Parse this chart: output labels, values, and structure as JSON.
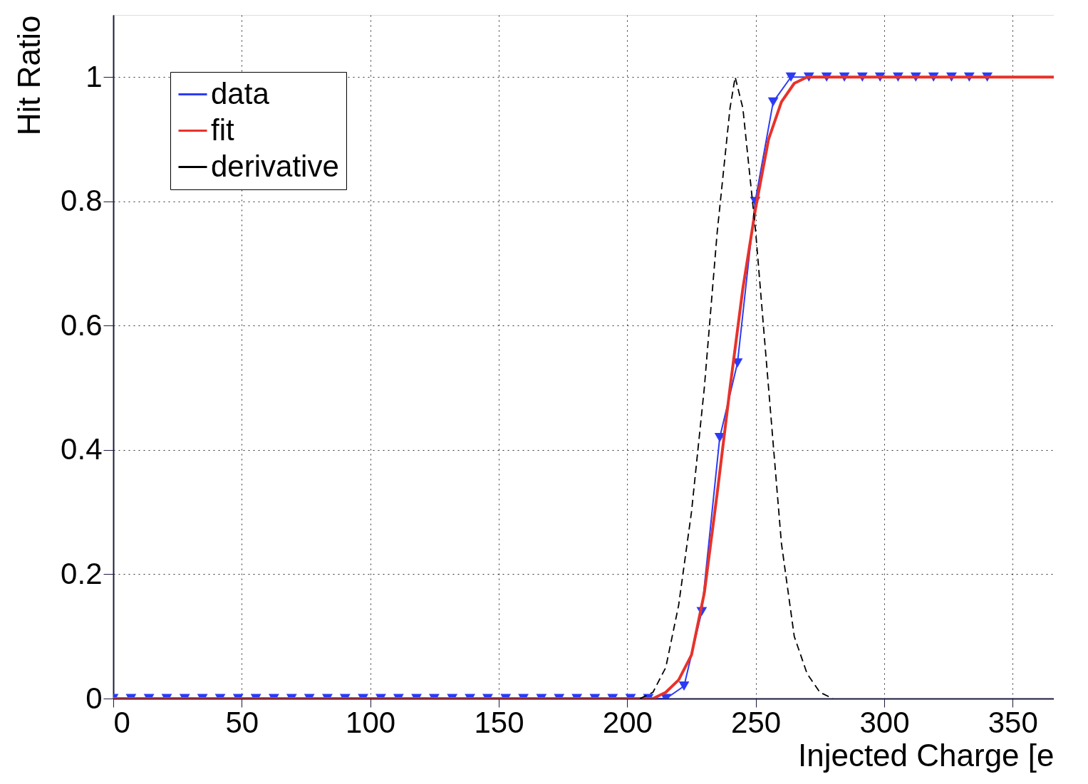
{
  "chart_data": {
    "type": "line",
    "xlabel": "Injected Charge [e",
    "ylabel": "Hit Ratio",
    "xlim": [
      0,
      366
    ],
    "ylim": [
      0,
      1.1
    ],
    "xticks": [
      0,
      50,
      100,
      150,
      200,
      250,
      300,
      350
    ],
    "yticks": [
      0,
      0.2,
      0.4,
      0.6,
      0.8,
      1
    ],
    "grid": true,
    "legend": "top left",
    "series": [
      {
        "name": "data",
        "color": "#2b3bf5",
        "marker": "triangle",
        "line_style": "solid",
        "x": [
          0,
          6.9,
          13.9,
          20.8,
          27.8,
          34.7,
          41.6,
          48.6,
          55.5,
          62.5,
          69.4,
          76.3,
          83.3,
          90.2,
          97.2,
          104.1,
          111,
          118,
          124.9,
          131.9,
          138.8,
          145.7,
          152.7,
          159.6,
          166.6,
          173.5,
          180.4,
          187.4,
          194.3,
          201.3,
          208.2,
          215.1,
          222.1,
          229,
          236,
          242.9,
          249.8,
          256.8,
          263.7,
          270.7,
          277.6,
          284.5,
          291.5,
          298.4,
          305.4,
          312.3,
          319.2,
          326.2,
          333.1,
          340.1
        ],
        "values": [
          0,
          0,
          0,
          0,
          0,
          0,
          0,
          0,
          0,
          0,
          0,
          0,
          0,
          0,
          0,
          0,
          0,
          0,
          0,
          0,
          0,
          0,
          0,
          0,
          0,
          0,
          0,
          0,
          0,
          0,
          0,
          0,
          0.02,
          0.14,
          0.42,
          0.54,
          0.8,
          0.96,
          1,
          1,
          1,
          1,
          1,
          1,
          1,
          1,
          1,
          1,
          1,
          1
        ]
      },
      {
        "name": "fit",
        "color": "#e8322a",
        "marker": "none",
        "line_style": "solid",
        "x": [
          0,
          205,
          210,
          215,
          220,
          225,
          230,
          235,
          240,
          245,
          250,
          255,
          260,
          265,
          270,
          366
        ],
        "values": [
          0,
          0,
          0,
          0.01,
          0.03,
          0.07,
          0.17,
          0.33,
          0.5,
          0.66,
          0.79,
          0.9,
          0.96,
          0.99,
          1,
          1
        ]
      },
      {
        "name": "derivative",
        "color": "#000000",
        "marker": "none",
        "line_style": "dashed",
        "x": [
          205,
          210,
          215,
          220,
          225,
          230,
          235,
          240,
          242,
          245,
          250,
          255,
          260,
          265,
          270,
          275,
          280
        ],
        "values": [
          0,
          0.01,
          0.05,
          0.15,
          0.3,
          0.5,
          0.75,
          0.95,
          1,
          0.95,
          0.75,
          0.5,
          0.25,
          0.1,
          0.04,
          0.01,
          0
        ]
      }
    ]
  }
}
